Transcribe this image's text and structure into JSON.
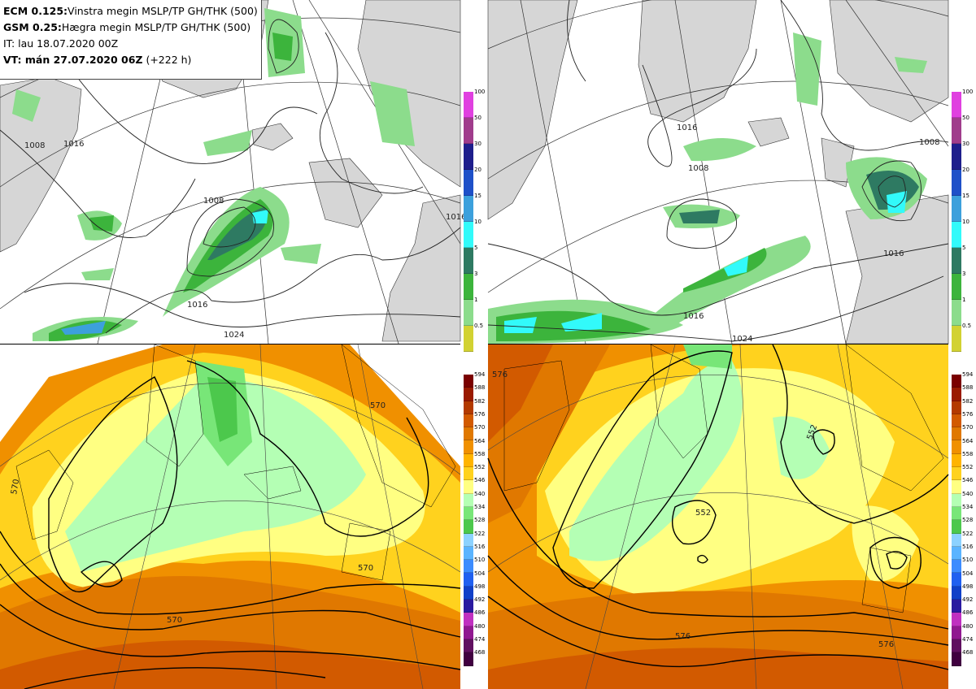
{
  "info": {
    "line1_bold": "ECM 0.125:",
    "line1_text": "Vinstra megin MSLP/TP GH/THK (500)",
    "line2_bold": "GSM 0.25:",
    "line2_text": "Hægra megin MSLP/TP GH/THK (500)",
    "line3": "IT: lau 18.07.2020 00Z",
    "line4_bold": "VT: mán 27.07.2020 06Z",
    "line4_text": " (+222 h)"
  },
  "precip_scale": {
    "labels": [
      "100",
      "50",
      "30",
      "20",
      "15",
      "10",
      "5",
      "3",
      "1",
      "0.5"
    ],
    "colors": [
      "#e040e0",
      "#a03c8c",
      "#1e1e8c",
      "#1e50c8",
      "#3ca0dc",
      "#32fafa",
      "#2e7a62",
      "#3cb43c",
      "#8cdc8c",
      "#d2d232"
    ]
  },
  "thickness_scale": {
    "labels": [
      "594",
      "588",
      "582",
      "576",
      "570",
      "564",
      "558",
      "552",
      "546",
      "540",
      "534",
      "528",
      "522",
      "516",
      "510",
      "504",
      "498",
      "492",
      "486",
      "480",
      "474",
      "468"
    ],
    "colors": [
      "#7a0000",
      "#9a1a00",
      "#b33a00",
      "#d25a00",
      "#e07800",
      "#f09000",
      "#ffb400",
      "#ffd21e",
      "#ffff82",
      "#b4ffb4",
      "#78e678",
      "#4cc84c",
      "#8cd2ff",
      "#5ab4ff",
      "#3c8cff",
      "#2060f0",
      "#1040c8",
      "#2a1aa0",
      "#c030c0",
      "#901890",
      "#601060",
      "#400040"
    ]
  },
  "contour_labels": {
    "tl": [
      "1008",
      "1016",
      "1008",
      "1016",
      "1024",
      "1016"
    ],
    "tr": [
      "1016",
      "1008",
      "1008",
      "1016",
      "1016",
      "1024"
    ],
    "bl": [
      "570",
      "570",
      "570",
      "570"
    ],
    "br": [
      "576",
      "552",
      "552",
      "576",
      "576"
    ]
  }
}
